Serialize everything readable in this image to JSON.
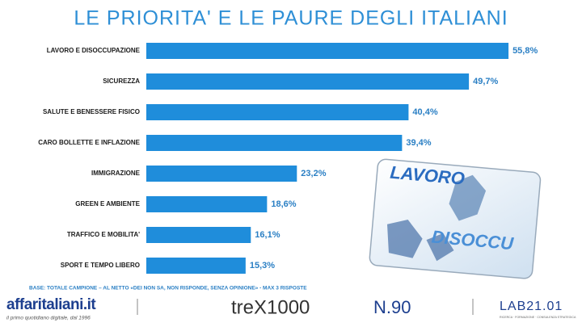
{
  "chart_data": {
    "type": "bar",
    "orientation": "horizontal",
    "title": "LE PRIORITA' E LE PAURE DEGLI ITALIANI",
    "categories": [
      "LAVORO E DISOCCUPAZIONE",
      "SICUREZZA",
      "SALUTE E BENESSERE FISICO",
      "CARO BOLLETTE E INFLAZIONE",
      "IMMIGRAZIONE",
      "GREEN E AMBIENTE",
      "TRAFFICO E MOBILITA'",
      "SPORT E TEMPO LIBERO"
    ],
    "values": [
      55.8,
      49.7,
      40.4,
      39.4,
      23.2,
      18.6,
      16.1,
      15.3
    ],
    "value_labels": [
      "55,8%",
      "49,7%",
      "40,4%",
      "39,4%",
      "23,2%",
      "18,6%",
      "16,1%",
      "15,3%"
    ],
    "color": "#1f8ddb",
    "note": "BASE: TOTALE CAMPIONE – AL NETTO «DEI NON SA, NON RISPONDE, SENZA OPINIONE» - MAX 3 RISPOSTE"
  },
  "image": {
    "words": [
      "LAVORO",
      "DISOCCU"
    ]
  },
  "footer": {
    "brand": "affaritaliani.it",
    "tagline": "il primo quotidiano digitale, dal 1996",
    "partner": "treX1000",
    "issue": "N.90",
    "lab": "LAB21.01",
    "lab_tagline": "RICERCA · FORMAZIONE · CONSULENZA STRATEGICA"
  }
}
